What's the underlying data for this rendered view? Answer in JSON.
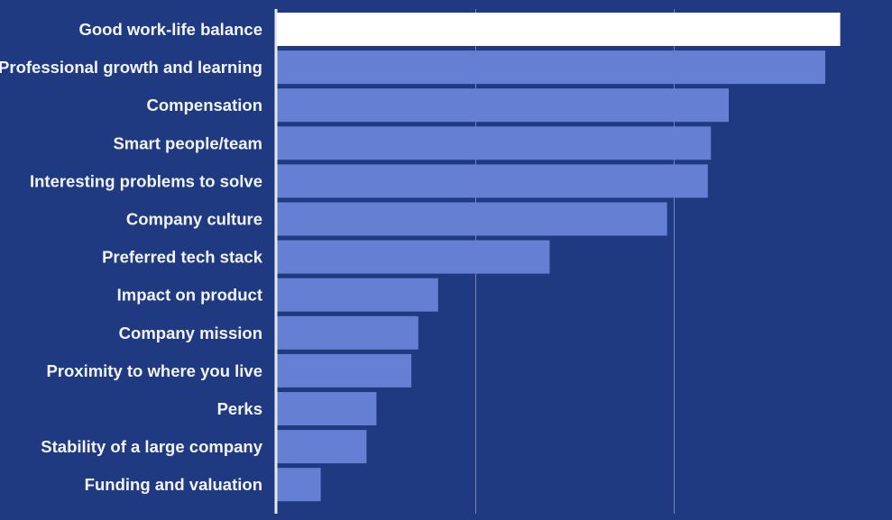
{
  "chart_data": {
    "type": "bar",
    "orientation": "horizontal",
    "categories": [
      "Good work-life balance",
      "Professional growth and learning",
      "Compensation",
      "Smart people/team",
      "Interesting problems to solve",
      "Company culture",
      "Preferred tech stack",
      "Impact on product",
      "Company mission",
      "Proximity to where you live",
      "Perks",
      "Stability of a large company",
      "Funding and valuation"
    ],
    "values": [
      56.7,
      55.2,
      45.5,
      43.7,
      43.4,
      39.3,
      27.5,
      16.3,
      14.3,
      13.6,
      10.1,
      9.1,
      4.5
    ],
    "title": "",
    "xlabel": "",
    "ylabel": "",
    "xlim": [
      0,
      60
    ],
    "grid": true,
    "tick_labels_visible": false,
    "highlighted_category": "Good work-life balance",
    "colors": {
      "background": "#203a82",
      "bar": "#6580d3",
      "highlight_bar": "#ffffff",
      "label_text": "#f2f4fb",
      "gridline": "#8e9fcf",
      "axis": "#e8ecf7"
    }
  }
}
